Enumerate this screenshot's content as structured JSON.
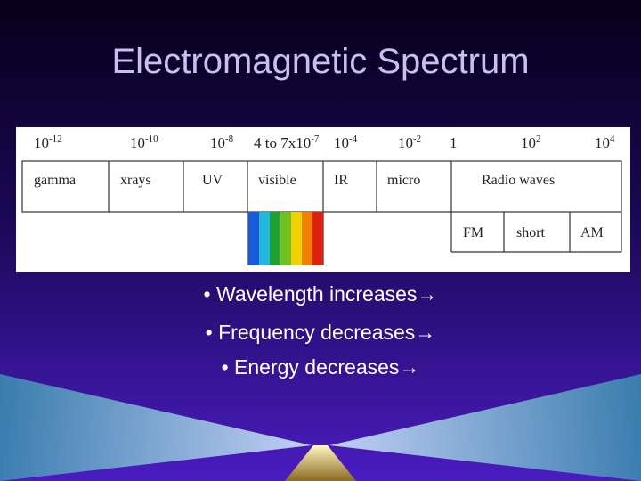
{
  "title": "Electromagnetic Spectrum",
  "scale": [
    {
      "base": "10",
      "exp": "-12"
    },
    {
      "base": "10",
      "exp": "-10"
    },
    {
      "base": "10",
      "exp": "-8"
    },
    {
      "base": "4 to 7x10",
      "exp": "-7"
    },
    {
      "base": "10",
      "exp": "-4"
    },
    {
      "base": "10",
      "exp": "-2"
    },
    {
      "base": "1"
    },
    {
      "base": "10",
      "exp": "2"
    },
    {
      "base": "10",
      "exp": "4"
    }
  ],
  "bands": [
    "gamma",
    "xrays",
    "UV",
    "visible",
    "IR",
    "micro",
    "Radio waves"
  ],
  "radio_bands": [
    "FM",
    "short",
    "AM"
  ],
  "bullets": [
    "Wavelength increases→",
    "Frequency decreases→",
    "Energy decreases→"
  ]
}
